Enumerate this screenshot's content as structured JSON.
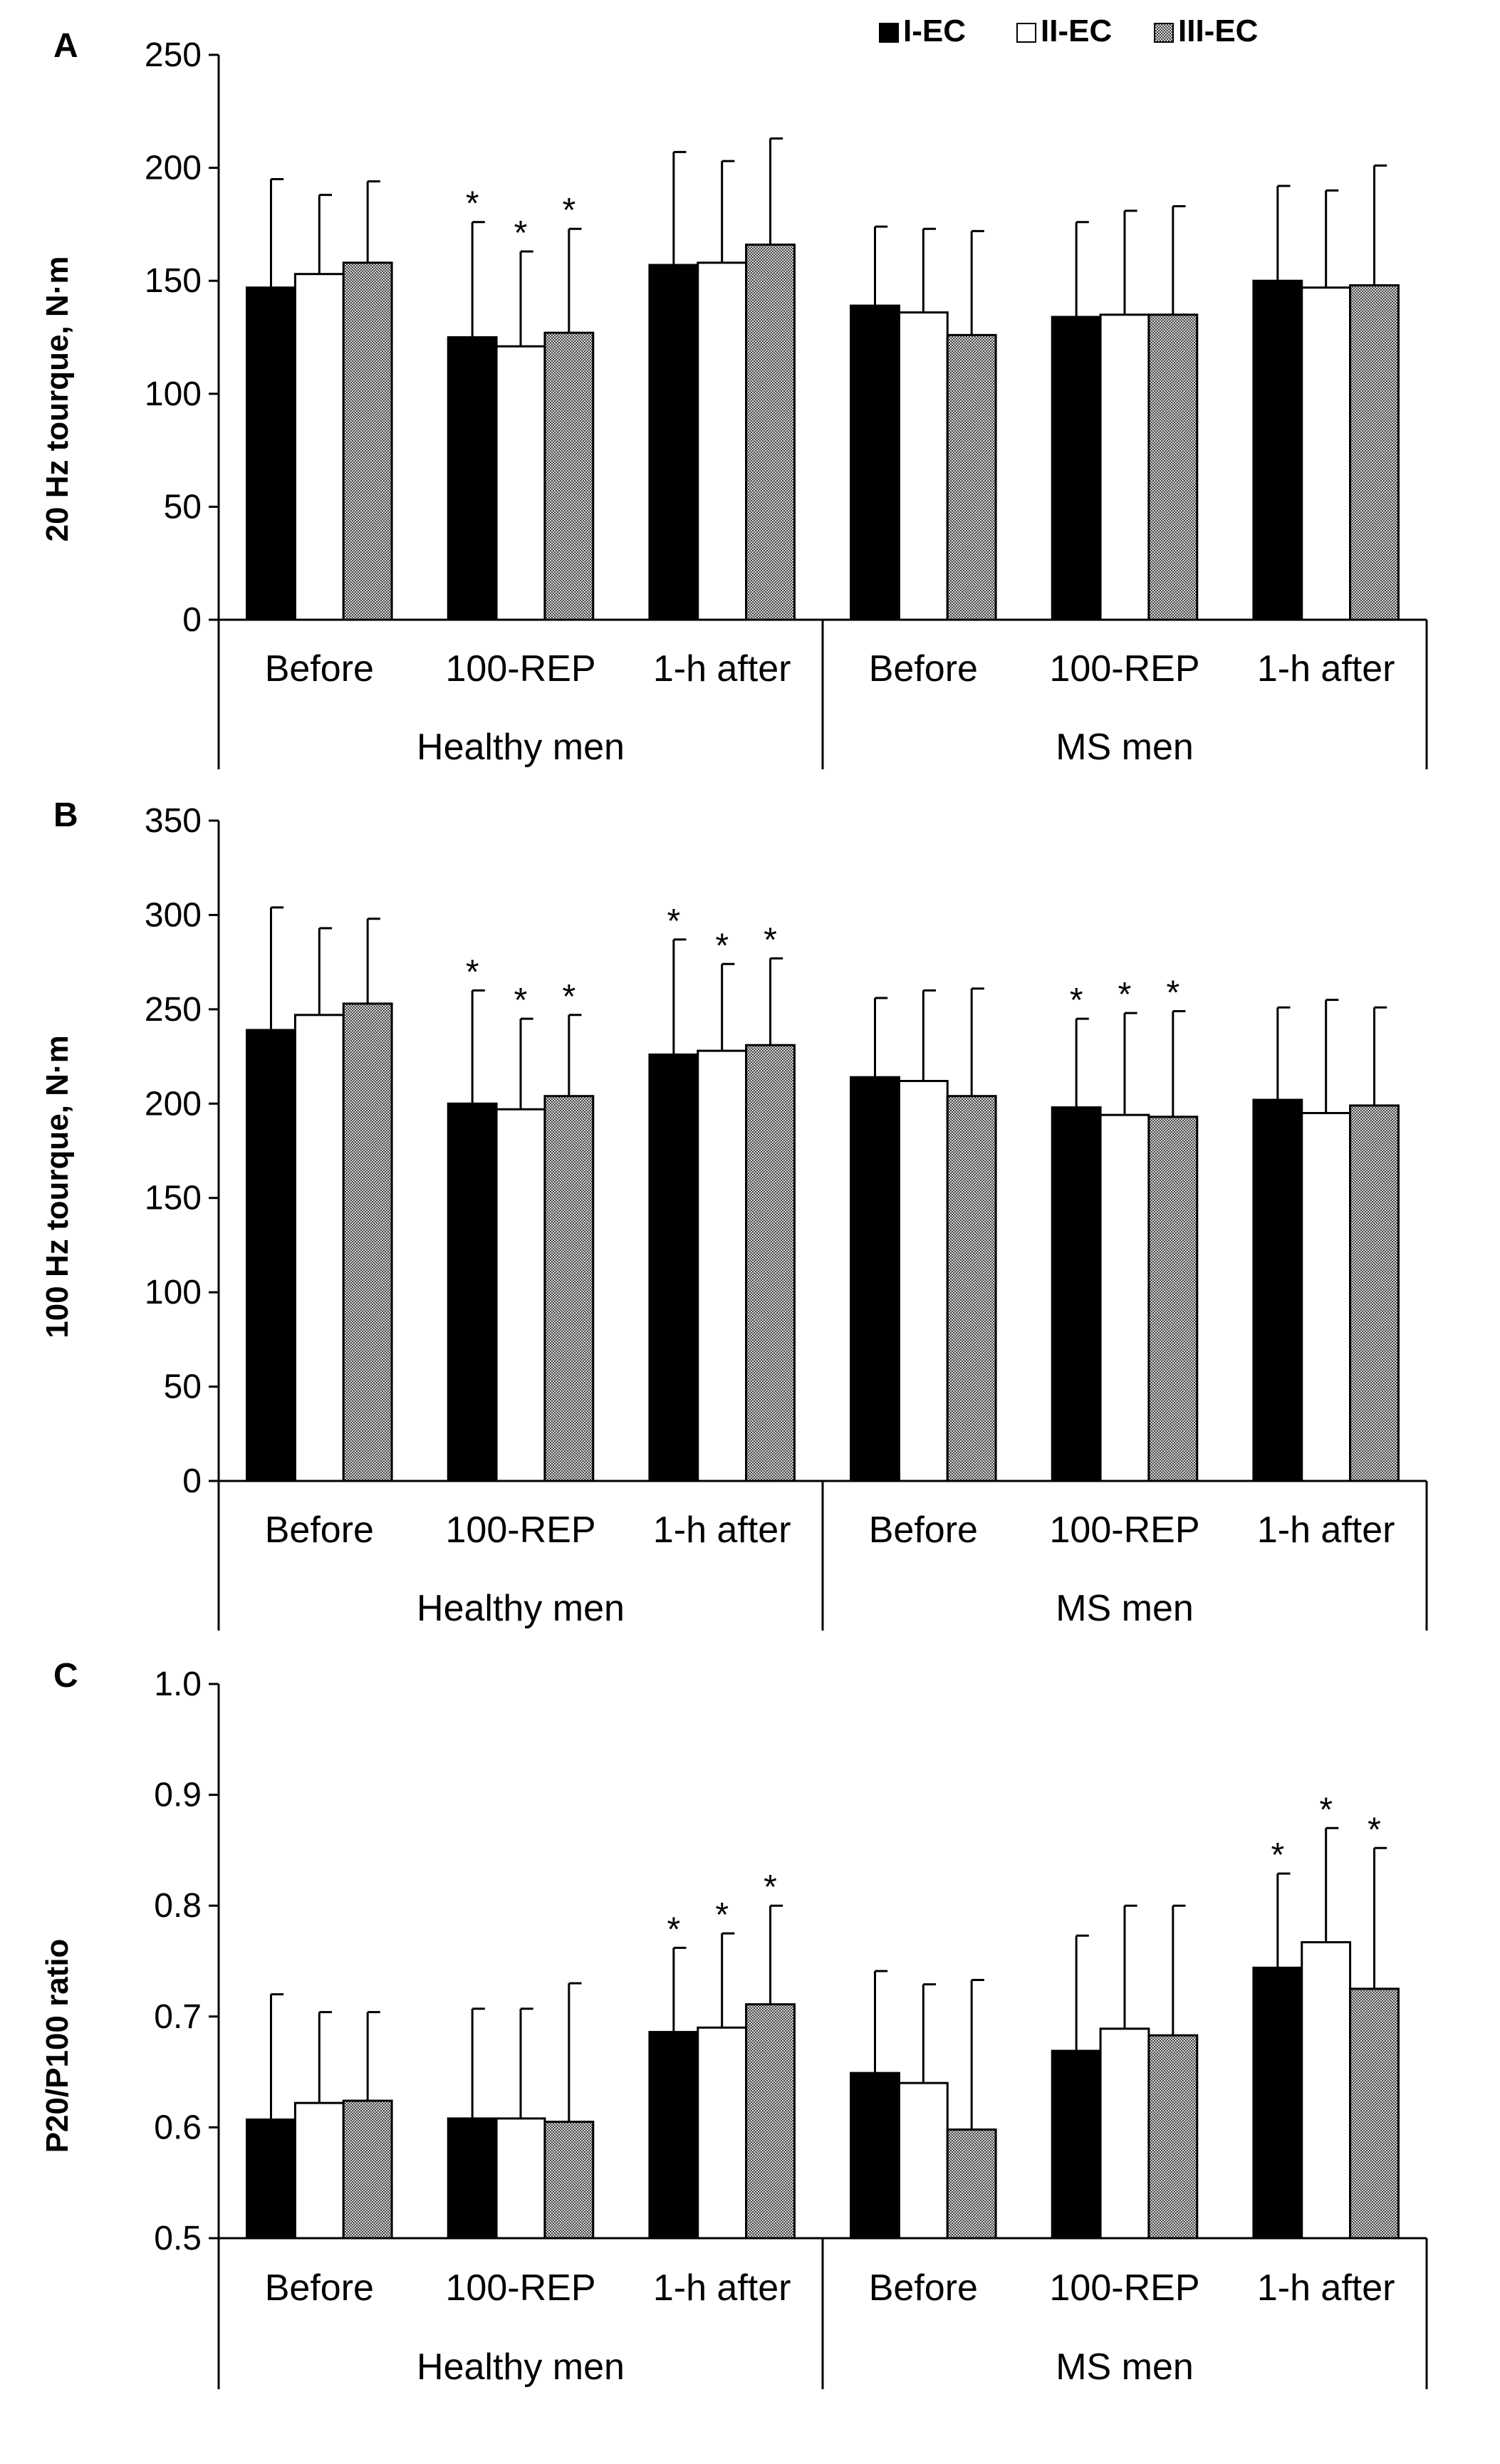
{
  "figure": {
    "legend": [
      {
        "label": "I-EC",
        "style": "black"
      },
      {
        "label": "II-EC",
        "style": "white"
      },
      {
        "label": "III-EC",
        "style": "gray"
      }
    ],
    "colors": {
      "black": "#000000",
      "white": "#ffffff",
      "gray": "#9a9a9a"
    }
  },
  "chart_data": [
    {
      "panel": "A",
      "type": "bar",
      "ylabel": "20 Hz tourque, N·m",
      "ylim": [
        0,
        250
      ],
      "yticks": [
        0,
        50,
        100,
        150,
        200,
        250
      ],
      "ytick_labels": [
        "0",
        "50",
        "100",
        "150",
        "200",
        "250"
      ],
      "categories": [
        "Before",
        "100-REP",
        "1-h after",
        "Before",
        "100-REP",
        "1-h after"
      ],
      "groups": [
        {
          "label": "Healthy men"
        },
        {
          "label": "MS men"
        }
      ],
      "series": [
        {
          "name": "I-EC",
          "values": [
            147,
            125,
            157,
            139,
            134,
            150
          ],
          "errors": [
            48,
            51,
            50,
            35,
            42,
            42
          ],
          "sig": [
            false,
            true,
            false,
            false,
            false,
            false
          ]
        },
        {
          "name": "II-EC",
          "values": [
            153,
            121,
            158,
            136,
            135,
            147
          ],
          "errors": [
            35,
            42,
            45,
            37,
            46,
            43
          ],
          "sig": [
            false,
            true,
            false,
            false,
            false,
            false
          ]
        },
        {
          "name": "III-EC",
          "values": [
            158,
            127,
            166,
            126,
            135,
            148
          ],
          "errors": [
            36,
            46,
            47,
            46,
            48,
            53
          ],
          "sig": [
            false,
            true,
            false,
            false,
            false,
            false
          ]
        }
      ],
      "sig_label": "*"
    },
    {
      "panel": "B",
      "type": "bar",
      "ylabel": "100 Hz tourque, N·m",
      "ylim": [
        0,
        350
      ],
      "yticks": [
        0,
        50,
        100,
        150,
        200,
        250,
        300,
        350
      ],
      "ytick_labels": [
        "0",
        "50",
        "100",
        "150",
        "200",
        "250",
        "300",
        "350"
      ],
      "categories": [
        "Before",
        "100-REP",
        "1-h after",
        "Before",
        "100-REP",
        "1-h after"
      ],
      "groups": [
        {
          "label": "Healthy men"
        },
        {
          "label": "MS men"
        }
      ],
      "series": [
        {
          "name": "I-EC",
          "values": [
            239,
            200,
            226,
            214,
            198,
            202
          ],
          "errors": [
            65,
            60,
            61,
            42,
            47,
            49
          ],
          "sig": [
            false,
            true,
            true,
            false,
            true,
            false
          ]
        },
        {
          "name": "II-EC",
          "values": [
            247,
            197,
            228,
            212,
            194,
            195
          ],
          "errors": [
            46,
            48,
            46,
            48,
            54,
            60
          ],
          "sig": [
            false,
            true,
            true,
            false,
            true,
            false
          ]
        },
        {
          "name": "III-EC",
          "values": [
            253,
            204,
            231,
            204,
            193,
            199
          ],
          "errors": [
            45,
            43,
            46,
            57,
            56,
            52
          ],
          "sig": [
            false,
            true,
            true,
            false,
            true,
            false
          ]
        }
      ],
      "sig_label": "*"
    },
    {
      "panel": "C",
      "type": "bar",
      "ylabel": "P20/P100 ratio",
      "ylim": [
        0.5,
        1.0
      ],
      "yticks": [
        0.5,
        0.6,
        0.7,
        0.8,
        0.9,
        1.0
      ],
      "ytick_labels": [
        "0.5",
        "0.6",
        "0.7",
        "0.8",
        "0.9",
        "1.0"
      ],
      "categories": [
        "Before",
        "100-REP",
        "1-h after",
        "Before",
        "100-REP",
        "1-h after"
      ],
      "groups": [
        {
          "label": "Healthy men"
        },
        {
          "label": "MS men"
        }
      ],
      "series": [
        {
          "name": "I-EC",
          "values": [
            0.607,
            0.608,
            0.686,
            0.649,
            0.669,
            0.744
          ],
          "errors": [
            0.113,
            0.099,
            0.076,
            0.092,
            0.104,
            0.085
          ],
          "sig": [
            false,
            false,
            true,
            false,
            false,
            true
          ]
        },
        {
          "name": "II-EC",
          "values": [
            0.622,
            0.608,
            0.69,
            0.64,
            0.689,
            0.767
          ],
          "errors": [
            0.082,
            0.099,
            0.085,
            0.089,
            0.111,
            0.103
          ],
          "sig": [
            false,
            false,
            true,
            false,
            false,
            true
          ]
        },
        {
          "name": "III-EC",
          "values": [
            0.624,
            0.605,
            0.711,
            0.598,
            0.683,
            0.725
          ],
          "errors": [
            0.08,
            0.125,
            0.089,
            0.135,
            0.117,
            0.127
          ],
          "sig": [
            false,
            false,
            true,
            false,
            false,
            true
          ]
        }
      ],
      "sig_label": "*"
    }
  ]
}
